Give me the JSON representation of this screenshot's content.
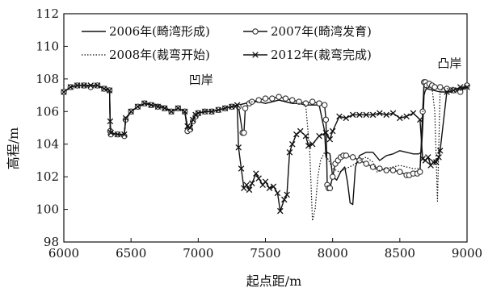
{
  "chart_data": {
    "type": "line",
    "title": "",
    "xlabel": "起点距/m",
    "ylabel": "高程/m",
    "xlim": [
      6000,
      9000
    ],
    "ylim": [
      98,
      112
    ],
    "xticks": [
      6000,
      6500,
      7000,
      7500,
      8000,
      8500,
      9000
    ],
    "yticks": [
      98,
      100,
      102,
      104,
      106,
      108,
      110,
      112
    ],
    "grid": false,
    "legend_position": "top",
    "annotations": [
      {
        "text": "凹岸",
        "x": 6930,
        "y": 107.7
      },
      {
        "text": "凸岸",
        "x": 8780,
        "y": 108.7
      }
    ],
    "series": [
      {
        "name": "2006年(畸湾形成)",
        "style": "solid",
        "marker": "none",
        "x": [
          6000,
          6050,
          6100,
          6150,
          6200,
          6250,
          6300,
          6340,
          6345,
          6350,
          6400,
          6450,
          6460,
          6500,
          6550,
          6600,
          6650,
          6700,
          6750,
          6800,
          6850,
          6900,
          6920,
          6940,
          6960,
          6980,
          7000,
          7050,
          7100,
          7150,
          7200,
          7250,
          7300,
          7350,
          7400,
          7450,
          7500,
          7550,
          7600,
          7650,
          7700,
          7750,
          7800,
          7850,
          7900,
          7940,
          7950,
          7960,
          7980,
          8000,
          8030,
          8060,
          8090,
          8110,
          8130,
          8150,
          8170,
          8200,
          8250,
          8300,
          8350,
          8400,
          8450,
          8500,
          8550,
          8600,
          8640,
          8660,
          8670,
          8680,
          8690,
          8700,
          8750,
          8800,
          8850,
          8900,
          8950,
          9000
        ],
        "y": [
          107.2,
          107.5,
          107.6,
          107.6,
          107.6,
          107.6,
          107.4,
          107.3,
          104.8,
          104.7,
          104.6,
          104.6,
          105.5,
          106.0,
          106.3,
          106.5,
          106.5,
          106.4,
          106.3,
          106.0,
          106.2,
          106.0,
          105.0,
          105.0,
          105.5,
          105.8,
          105.9,
          106.0,
          106.0,
          106.1,
          106.2,
          106.3,
          106.4,
          106.5,
          106.6,
          106.6,
          106.5,
          106.6,
          106.7,
          106.6,
          106.5,
          106.5,
          106.4,
          106.4,
          106.4,
          104.8,
          103.2,
          103.5,
          103.4,
          102.0,
          101.8,
          102.3,
          102.6,
          101.7,
          100.4,
          100.3,
          102.6,
          103.3,
          103.5,
          103.5,
          103.0,
          103.3,
          103.4,
          103.6,
          103.5,
          103.4,
          103.4,
          103.5,
          105.0,
          107.0,
          107.3,
          107.4,
          107.3,
          107.2,
          107.2,
          107.2,
          107.4,
          107.5
        ]
      },
      {
        "name": "2007年(畸湾发育)",
        "style": "solid",
        "marker": "circle",
        "x": [
          6000,
          6050,
          6100,
          6150,
          6200,
          6250,
          6300,
          6340,
          6345,
          6350,
          6400,
          6450,
          6460,
          6500,
          6550,
          6600,
          6650,
          6700,
          6750,
          6800,
          6850,
          6900,
          6920,
          6940,
          6960,
          6980,
          7000,
          7050,
          7100,
          7150,
          7200,
          7250,
          7300,
          7330,
          7340,
          7350,
          7380,
          7400,
          7450,
          7500,
          7550,
          7600,
          7650,
          7700,
          7750,
          7800,
          7850,
          7900,
          7940,
          7950,
          7960,
          7970,
          7980,
          8000,
          8020,
          8040,
          8060,
          8080,
          8100,
          8150,
          8200,
          8250,
          8300,
          8350,
          8400,
          8450,
          8500,
          8550,
          8570,
          8600,
          8630,
          8650,
          8670,
          8680,
          8690,
          8700,
          8720,
          8740,
          8760,
          8800,
          8850,
          8900,
          8950,
          9000
        ],
        "y": [
          107.2,
          107.5,
          107.6,
          107.6,
          107.5,
          107.6,
          107.4,
          107.3,
          104.8,
          104.6,
          104.6,
          104.5,
          105.5,
          106.0,
          106.3,
          106.5,
          106.4,
          106.3,
          106.2,
          106.0,
          106.2,
          106.0,
          104.8,
          104.9,
          105.4,
          105.7,
          105.9,
          106.0,
          106.0,
          106.1,
          106.2,
          106.3,
          106.3,
          104.7,
          104.7,
          106.2,
          106.5,
          106.6,
          106.7,
          106.8,
          106.8,
          106.9,
          106.8,
          106.7,
          106.6,
          106.5,
          106.6,
          106.5,
          106.4,
          105.5,
          101.5,
          101.3,
          101.3,
          102.0,
          102.8,
          103.0,
          103.2,
          103.3,
          103.3,
          103.2,
          103.0,
          102.8,
          102.6,
          102.5,
          102.4,
          102.4,
          102.3,
          102.1,
          102.1,
          102.2,
          102.2,
          102.3,
          106.0,
          107.8,
          107.8,
          107.6,
          107.7,
          107.6,
          107.5,
          107.5,
          107.4,
          107.3,
          107.2,
          107.6
        ]
      },
      {
        "name": "2008年(裁弯开始)",
        "style": "dotted",
        "marker": "none",
        "x": [
          6000,
          6050,
          6100,
          6150,
          6200,
          6250,
          6300,
          6340,
          6345,
          6350,
          6400,
          6450,
          6460,
          6500,
          6550,
          6600,
          6650,
          6700,
          6750,
          6800,
          6850,
          6900,
          6920,
          6940,
          6960,
          6980,
          7000,
          7050,
          7100,
          7150,
          7200,
          7250,
          7300,
          7350,
          7400,
          7450,
          7500,
          7550,
          7600,
          7650,
          7700,
          7750,
          7800,
          7830,
          7850,
          7870,
          7890,
          7910,
          7940,
          7970,
          8000,
          8050,
          8100,
          8150,
          8200,
          8250,
          8300,
          8330,
          8350,
          8400,
          8450,
          8500,
          8550,
          8600,
          8650,
          8680,
          8700,
          8740,
          8760,
          8780,
          8800,
          8850,
          8900,
          8950,
          9000
        ],
        "y": [
          107.2,
          107.5,
          107.6,
          107.6,
          107.6,
          107.6,
          107.4,
          107.3,
          104.8,
          104.7,
          104.6,
          104.6,
          105.5,
          106.0,
          106.3,
          106.5,
          106.5,
          106.4,
          106.3,
          106.0,
          106.2,
          106.0,
          105.0,
          105.0,
          105.5,
          105.8,
          105.9,
          106.0,
          106.0,
          106.1,
          106.2,
          106.3,
          106.4,
          106.5,
          106.6,
          106.6,
          106.5,
          106.6,
          106.7,
          106.6,
          106.5,
          106.5,
          106.4,
          103.5,
          99.3,
          100.0,
          102.0,
          103.0,
          103.5,
          103.0,
          102.5,
          102.3,
          102.5,
          102.7,
          103.0,
          103.2,
          102.9,
          102.3,
          102.4,
          102.5,
          102.6,
          102.7,
          102.6,
          102.5,
          102.5,
          107.4,
          107.5,
          107.4,
          106.0,
          100.5,
          107.3,
          107.4,
          107.5,
          107.3,
          107.6
        ]
      },
      {
        "name": "2012年(裁弯完成)",
        "style": "solid",
        "marker": "x",
        "x": [
          6000,
          6050,
          6100,
          6150,
          6200,
          6250,
          6300,
          6340,
          6345,
          6350,
          6400,
          6450,
          6460,
          6500,
          6550,
          6600,
          6650,
          6700,
          6750,
          6800,
          6850,
          6900,
          6920,
          6940,
          6960,
          6980,
          7000,
          7050,
          7100,
          7150,
          7200,
          7250,
          7290,
          7300,
          7320,
          7340,
          7360,
          7380,
          7400,
          7430,
          7450,
          7480,
          7500,
          7530,
          7560,
          7590,
          7610,
          7640,
          7660,
          7680,
          7700,
          7730,
          7760,
          7800,
          7820,
          7850,
          7900,
          7950,
          7980,
          8000,
          8050,
          8100,
          8150,
          8200,
          8250,
          8300,
          8350,
          8400,
          8450,
          8500,
          8550,
          8600,
          8650,
          8670,
          8690,
          8710,
          8730,
          8750,
          8770,
          8790,
          8800,
          8850,
          8900,
          8950,
          9000
        ],
        "y": [
          107.2,
          107.5,
          107.6,
          107.6,
          107.6,
          107.6,
          107.4,
          107.3,
          105.4,
          104.7,
          104.6,
          104.6,
          105.6,
          106.0,
          106.3,
          106.5,
          106.4,
          106.3,
          106.2,
          106.0,
          106.2,
          106.0,
          105.1,
          105.0,
          105.5,
          105.8,
          105.9,
          106.0,
          106.0,
          106.1,
          106.2,
          106.3,
          106.4,
          103.8,
          102.5,
          101.3,
          101.5,
          101.2,
          101.6,
          102.2,
          101.9,
          101.5,
          101.7,
          101.3,
          101.4,
          101.0,
          99.9,
          100.6,
          100.9,
          103.5,
          104.0,
          104.6,
          104.8,
          104.5,
          103.9,
          104.0,
          104.5,
          104.7,
          104.3,
          104.8,
          105.7,
          105.6,
          105.8,
          105.8,
          105.8,
          105.8,
          105.9,
          105.8,
          105.9,
          105.6,
          105.7,
          105.9,
          105.5,
          103.1,
          103.0,
          103.2,
          102.7,
          102.9,
          102.9,
          103.2,
          103.6,
          107.2,
          107.3,
          107.5,
          107.5
        ]
      }
    ]
  }
}
